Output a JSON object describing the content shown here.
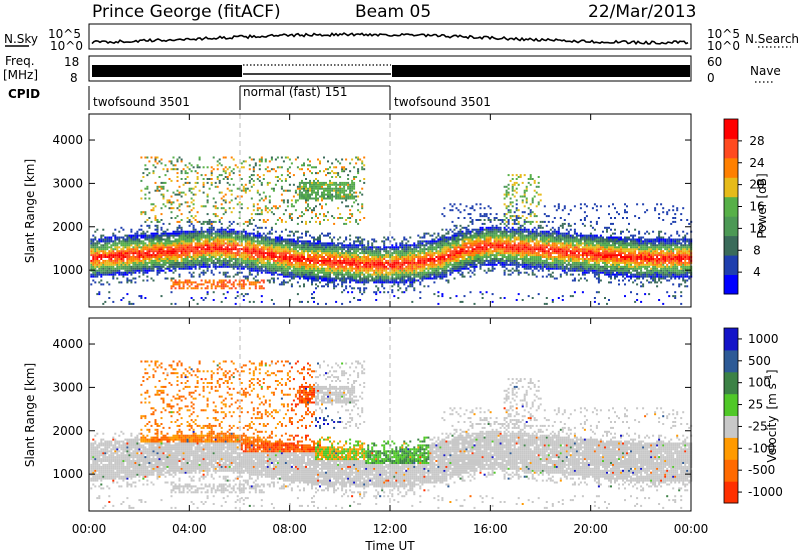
{
  "header": {
    "station": "Prince George (fitACF)",
    "beam": "Beam 05",
    "date": "22/Mar/2013"
  },
  "sky_panel": {
    "left_label": "N.Sky",
    "right_label": "N.Search",
    "left_ticks": [
      "10^5",
      "10^0"
    ],
    "right_ticks": [
      "10^5",
      "10^0"
    ]
  },
  "freq_panel": {
    "left_label_line1": "Freq.",
    "left_label_line2": "[MHz]",
    "left_ticks": [
      "18",
      "8"
    ],
    "right_label": "Nave",
    "right_ticks": [
      "60",
      "0"
    ]
  },
  "cpid": {
    "label": "CPID",
    "segments": [
      {
        "name": "twofsound 3501",
        "start_hour": 0,
        "end_hour": 6
      },
      {
        "name": "normal (fast) 151",
        "start_hour": 6,
        "end_hour": 12
      },
      {
        "name": "twofsound 3501",
        "start_hour": 12,
        "end_hour": 24
      }
    ]
  },
  "colors": {
    "power_scale": [
      "#0000ff",
      "#1f3fae",
      "#3a6b5a",
      "#4c9955",
      "#57b048",
      "#e6bb1a",
      "#ff8000",
      "#ff4a20",
      "#ff0000"
    ],
    "velocity_scale": [
      "#1414c8",
      "#2d5a96",
      "#3c8246",
      "#50c828",
      "#c8c8c8",
      "#ff9a00",
      "#ff6a00",
      "#ff3000"
    ]
  },
  "chart_data": [
    {
      "type": "heatmap",
      "title": "Power",
      "xlabel": "",
      "ylabel": "Slant Range [km]",
      "xlim": [
        0,
        24
      ],
      "ylim": [
        150,
        4600
      ],
      "xtick_labels": [
        "00:00",
        "04:00",
        "08:00",
        "12:00",
        "16:00",
        "20:00",
        "00:00"
      ],
      "xticks": [
        0,
        4,
        8,
        12,
        16,
        20,
        24
      ],
      "ytick_labels": [
        "1000",
        "2000",
        "3000",
        "4000"
      ],
      "yticks": [
        1000,
        2000,
        3000,
        4000
      ],
      "colorbar": {
        "label": "Power [dB]",
        "tick_labels": [
          "4",
          "8",
          "12",
          "16",
          "20",
          "24",
          "28"
        ],
        "range": [
          0,
          32
        ]
      },
      "regions": [
        {
          "t0": 0,
          "t1": 24,
          "r_center": [
            1250,
            1300,
            1350,
            1400,
            1450,
            1500,
            1450,
            1350,
            1250,
            1200,
            1150,
            1100,
            1100,
            1150,
            1250,
            1450,
            1550,
            1500,
            1450,
            1400,
            1350,
            1300,
            1250,
            1250,
            1250
          ],
          "description_level": "main band ~ 1000-2000 km, strongest near 1100-1400 km"
        },
        {
          "t0": 8.5,
          "t1": 10.5,
          "r0": 2600,
          "r1": 3000,
          "level": "medium"
        },
        {
          "t0": 3,
          "t1": 7,
          "r0": 500,
          "r1": 800,
          "level": "high"
        }
      ]
    },
    {
      "type": "heatmap",
      "title": "Velocity",
      "xlabel": "Time UT",
      "ylabel": "Slant Range [km]",
      "xlim": [
        0,
        24
      ],
      "ylim": [
        150,
        4600
      ],
      "xtick_labels": [
        "00:00",
        "04:00",
        "08:00",
        "12:00",
        "16:00",
        "20:00",
        "00:00"
      ],
      "xticks": [
        0,
        4,
        8,
        12,
        16,
        20,
        24
      ],
      "ytick_labels": [
        "1000",
        "2000",
        "3000",
        "4000"
      ],
      "yticks": [
        1000,
        2000,
        3000,
        4000
      ],
      "colorbar": {
        "label": "Velocity [m s^-1]",
        "tick_labels": [
          "1000",
          "500",
          "100",
          "25",
          "-25",
          "-100",
          "-500",
          "-1000"
        ],
        "range": [
          -1000,
          1000
        ]
      }
    }
  ]
}
